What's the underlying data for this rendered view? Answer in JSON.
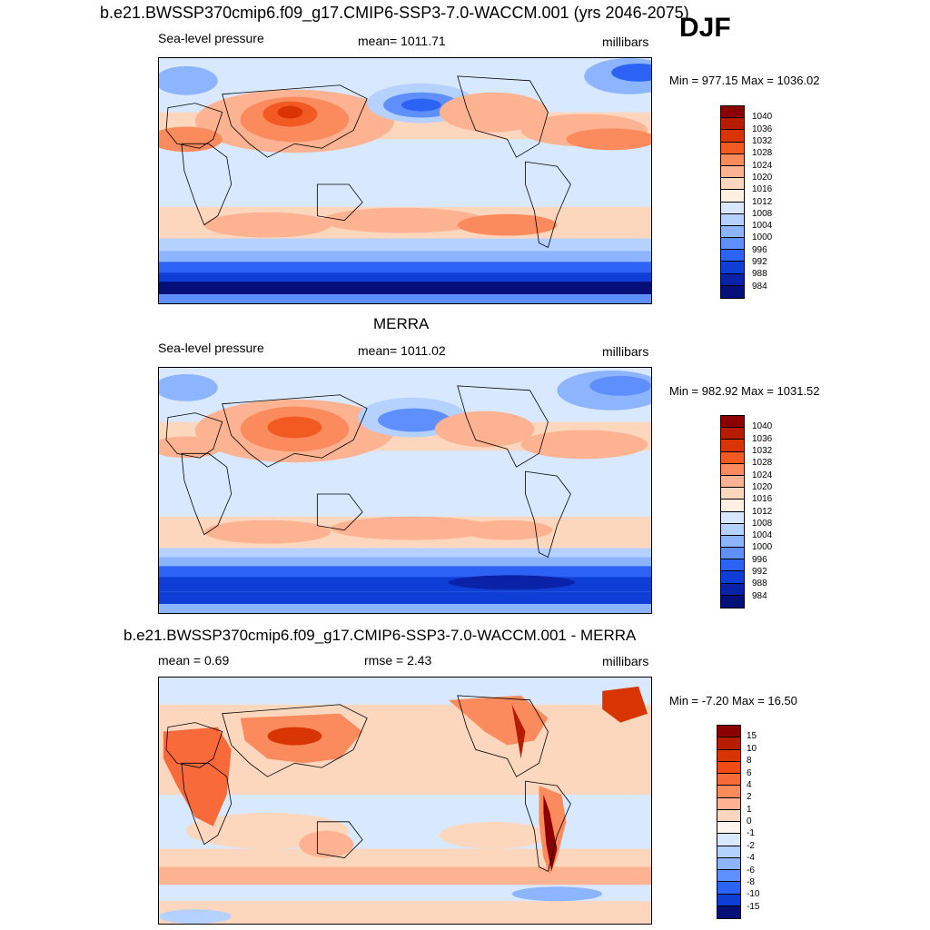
{
  "page": {
    "title": "b.e21.BWSSP370cmip6.f09_g17.CMIP6-SSP3-7.0-WACCM.001 (yrs 2046-2075)",
    "season": "DJF"
  },
  "panels": [
    {
      "title": "",
      "left_label": "Sea-level pressure",
      "center_label": "mean= 1011.71",
      "right_label": "millibars",
      "minmax": "Min = 977.15 Max = 1036.02",
      "colorbar_labels": [
        "1040",
        "1036",
        "1032",
        "1028",
        "1024",
        "1020",
        "1016",
        "1012",
        "1008",
        "1004",
        "1000",
        "996",
        "992",
        "988",
        "984"
      ],
      "colors": [
        "#8b0000",
        "#b51c02",
        "#d83404",
        "#f25a22",
        "#fb8a5c",
        "#fdb391",
        "#fdd6be",
        "#fff0e2",
        "#d8e9ff",
        "#b5d1ff",
        "#8db4ff",
        "#5f8ffc",
        "#2c63f5",
        "#0f3ed6",
        "#0a22a8",
        "#050f78"
      ]
    },
    {
      "title": "MERRA",
      "left_label": "Sea-level pressure",
      "center_label": "mean= 1011.02",
      "right_label": "millibars",
      "minmax": "Min = 982.92 Max = 1031.52",
      "colorbar_labels": [
        "1040",
        "1036",
        "1032",
        "1028",
        "1024",
        "1020",
        "1016",
        "1012",
        "1008",
        "1004",
        "1000",
        "996",
        "992",
        "988",
        "984"
      ],
      "colors": [
        "#8b0000",
        "#b51c02",
        "#d83404",
        "#f25a22",
        "#fb8a5c",
        "#fdb391",
        "#fdd6be",
        "#fff0e2",
        "#d8e9ff",
        "#b5d1ff",
        "#8db4ff",
        "#5f8ffc",
        "#2c63f5",
        "#0f3ed6",
        "#0a22a8",
        "#050f78"
      ]
    },
    {
      "title": "b.e21.BWSSP370cmip6.f09_g17.CMIP6-SSP3-7.0-WACCM.001 - MERRA",
      "left_label": "mean =   0.69",
      "center_label": "rmse =   2.43",
      "right_label": "millibars",
      "minmax": "Min =  -7.20 Max =  16.50",
      "colorbar_labels": [
        "15",
        "10",
        "8",
        "6",
        "4",
        "2",
        "1",
        "0",
        "-1",
        "-2",
        "-4",
        "-6",
        "-8",
        "-10",
        "-15"
      ],
      "colors": [
        "#8b0000",
        "#b51c02",
        "#d83404",
        "#f04b14",
        "#f86a3a",
        "#fb8a5c",
        "#fdb391",
        "#fdd6be",
        "#fff5ee",
        "#d8e9ff",
        "#b5d1ff",
        "#8db4ff",
        "#5f8ffc",
        "#2c63f5",
        "#0f3ed6",
        "#050f78"
      ]
    }
  ]
}
